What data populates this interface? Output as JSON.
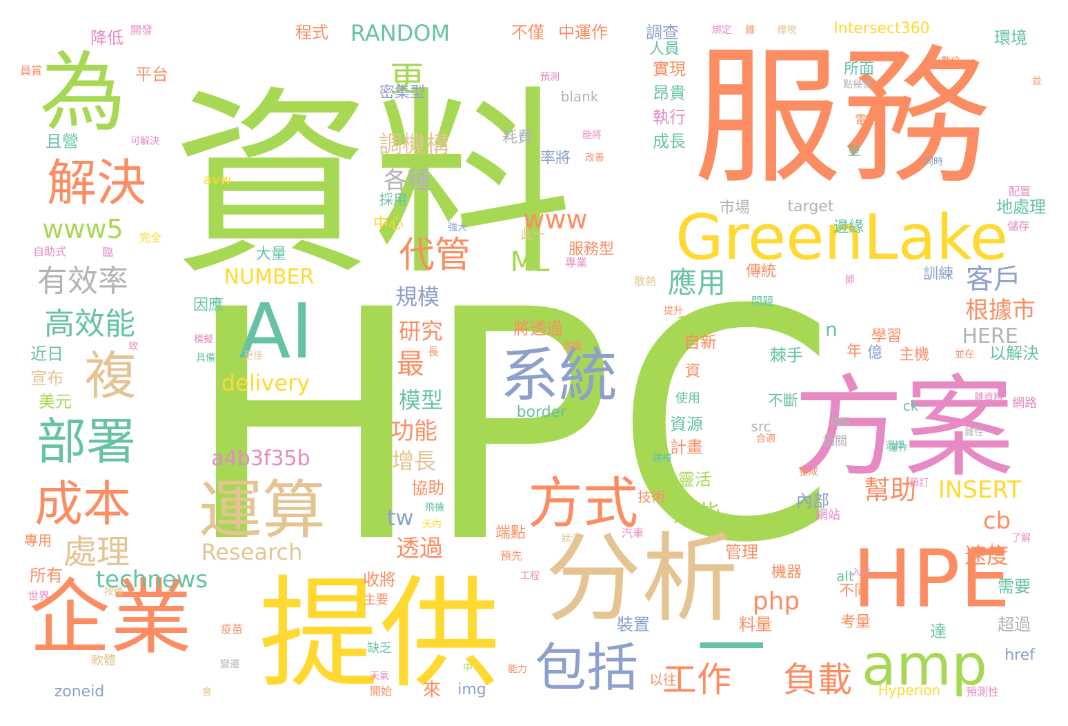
{
  "palette": {
    "green": "#a6d854",
    "orange": "#fc8d62",
    "yellow": "#ffd92f",
    "tan": "#e5c494",
    "teal": "#66c2a5",
    "blue": "#8da0cb",
    "pink": "#e78ac3",
    "gray": "#b3b3b3"
  },
  "words": [
    {
      "text": "HPC",
      "c": "green"
    },
    {
      "text": "資料",
      "c": "green"
    },
    {
      "text": "服務",
      "c": "orange"
    },
    {
      "text": "提供",
      "c": "yellow"
    },
    {
      "text": "方案",
      "c": "pink"
    },
    {
      "text": "分析",
      "c": "tan"
    },
    {
      "text": "企業",
      "c": "orange"
    },
    {
      "text": "HPE",
      "c": "orange"
    },
    {
      "text": "GreenLake",
      "c": "yellow"
    },
    {
      "text": "為",
      "c": "green"
    },
    {
      "text": "AI",
      "c": "teal"
    },
    {
      "text": "一",
      "c": "teal"
    },
    {
      "text": "系統",
      "c": "blue"
    },
    {
      "text": "運算",
      "c": "tan"
    },
    {
      "text": "解決",
      "c": "orange"
    },
    {
      "text": "包括",
      "c": "blue"
    },
    {
      "text": "方式",
      "c": "orange"
    },
    {
      "text": "amp",
      "c": "green"
    },
    {
      "text": "部署",
      "c": "teal"
    },
    {
      "text": "複",
      "c": "tan"
    },
    {
      "text": "成本",
      "c": "orange"
    },
    {
      "text": "工作",
      "c": "orange"
    },
    {
      "text": "負載",
      "c": "orange"
    },
    {
      "text": "高效能",
      "c": "teal"
    },
    {
      "text": "有效率",
      "c": "gray"
    },
    {
      "text": "www5",
      "c": "green"
    },
    {
      "text": "代管",
      "c": "orange"
    },
    {
      "text": "更",
      "c": "green"
    },
    {
      "text": "處理",
      "c": "tan"
    },
    {
      "text": "technews",
      "c": "teal"
    },
    {
      "text": "RANDOM",
      "c": "teal"
    },
    {
      "text": "調機構",
      "c": "tan"
    },
    {
      "text": "各種",
      "c": "gray"
    },
    {
      "text": "www",
      "c": "orange"
    },
    {
      "text": "ML",
      "c": "green"
    },
    {
      "text": "應用",
      "c": "teal"
    },
    {
      "text": "客戶",
      "c": "blue"
    },
    {
      "text": "根據市",
      "c": "orange"
    },
    {
      "text": "NUMBER",
      "c": "yellow"
    },
    {
      "text": "規模",
      "c": "blue"
    },
    {
      "text": "研究",
      "c": "orange"
    },
    {
      "text": "最",
      "c": "orange"
    },
    {
      "text": "delivery",
      "c": "yellow"
    },
    {
      "text": "a4b3f35b",
      "c": "pink"
    },
    {
      "text": "模型",
      "c": "teal"
    },
    {
      "text": "功能",
      "c": "orange"
    },
    {
      "text": "增長",
      "c": "tan"
    },
    {
      "text": "幫助",
      "c": "orange"
    },
    {
      "text": "INSERT",
      "c": "yellow"
    },
    {
      "text": "HERE",
      "c": "gray"
    },
    {
      "text": "tw",
      "c": "blue"
    },
    {
      "text": "cb",
      "c": "orange"
    },
    {
      "text": "Research",
      "c": "tan"
    },
    {
      "text": "透過",
      "c": "orange"
    },
    {
      "text": "php",
      "c": "orange"
    },
    {
      "text": "速度",
      "c": "orange"
    },
    {
      "text": "這些",
      "c": "green"
    },
    {
      "text": "a",
      "c": "green"
    },
    {
      "text": "n",
      "c": "teal"
    },
    {
      "text": "Intersect360",
      "c": "yellow"
    },
    {
      "text": "程式",
      "c": "orange"
    },
    {
      "text": "不僅",
      "c": "orange"
    },
    {
      "text": "中運作",
      "c": "orange"
    },
    {
      "text": "調查",
      "c": "blue"
    },
    {
      "text": "環境",
      "c": "teal"
    },
    {
      "text": "降低",
      "c": "pink"
    },
    {
      "text": "平台",
      "c": "orange"
    },
    {
      "text": "密集型",
      "c": "blue"
    },
    {
      "text": "blank",
      "c": "gray"
    },
    {
      "text": "耗費",
      "c": "gray"
    },
    {
      "text": "率將",
      "c": "blue"
    },
    {
      "text": "執行",
      "c": "pink"
    },
    {
      "text": "成長",
      "c": "teal"
    },
    {
      "text": "實現",
      "c": "orange"
    },
    {
      "text": "昂貴",
      "c": "teal"
    },
    {
      "text": "人員",
      "c": "teal"
    },
    {
      "text": "所面",
      "c": "teal"
    },
    {
      "text": "電力",
      "c": "orange"
    },
    {
      "text": "市場",
      "c": "gray"
    },
    {
      "text": "target",
      "c": "gray"
    },
    {
      "text": "邊緣",
      "c": "teal"
    },
    {
      "text": "地處理",
      "c": "teal"
    },
    {
      "text": "服務型",
      "c": "orange"
    },
    {
      "text": "大量",
      "c": "teal"
    },
    {
      "text": "傳統",
      "c": "orange"
    },
    {
      "text": "訓練",
      "c": "blue"
    },
    {
      "text": "因應",
      "c": "teal"
    },
    {
      "text": "學習",
      "c": "orange"
    },
    {
      "text": "將透過",
      "c": "orange"
    },
    {
      "text": "自新",
      "c": "orange"
    },
    {
      "text": "主機",
      "c": "orange"
    },
    {
      "text": "棘手",
      "c": "teal"
    },
    {
      "text": "以解決",
      "c": "teal"
    },
    {
      "text": "近日",
      "c": "teal"
    },
    {
      "text": "宣布",
      "c": "tan"
    },
    {
      "text": "美元",
      "c": "green"
    },
    {
      "text": "所有",
      "c": "orange"
    },
    {
      "text": "border",
      "c": "teal"
    },
    {
      "text": "資源",
      "c": "teal"
    },
    {
      "text": "計畫",
      "c": "orange"
    },
    {
      "text": "一靈活",
      "c": "green"
    },
    {
      "text": "協助",
      "c": "orange"
    },
    {
      "text": "內部",
      "c": "blue"
    },
    {
      "text": "不斷",
      "c": "teal"
    },
    {
      "text": "src",
      "c": "gray"
    },
    {
      "text": "ck",
      "c": "teal"
    },
    {
      "text": "收將",
      "c": "orange"
    },
    {
      "text": "機器",
      "c": "orange"
    },
    {
      "text": "alt",
      "c": "teal"
    },
    {
      "text": "不同",
      "c": "orange"
    },
    {
      "text": "需要",
      "c": "teal"
    },
    {
      "text": "超過",
      "c": "gray"
    },
    {
      "text": "管理",
      "c": "orange"
    },
    {
      "text": "裝置",
      "c": "blue"
    },
    {
      "text": "料量",
      "c": "orange"
    },
    {
      "text": "考量",
      "c": "orange"
    },
    {
      "text": "達",
      "c": "teal"
    },
    {
      "text": "以往",
      "c": "orange"
    },
    {
      "text": "href",
      "c": "blue"
    },
    {
      "text": "zoneid",
      "c": "blue"
    },
    {
      "text": "img",
      "c": "blue"
    },
    {
      "text": "Hyperion",
      "c": "yellow"
    },
    {
      "text": "來",
      "c": "orange"
    },
    {
      "text": "年",
      "c": "orange"
    },
    {
      "text": "億",
      "c": "blue"
    },
    {
      "text": "端點",
      "c": "orange"
    },
    {
      "text": "技術",
      "c": "orange"
    },
    {
      "text": "採用",
      "c": "teal"
    },
    {
      "text": "中心",
      "c": "yellow"
    },
    {
      "text": "此一",
      "c": "tan"
    },
    {
      "text": "且營",
      "c": "teal"
    },
    {
      "text": "自助式",
      "c": "pink"
    },
    {
      "text": "專用",
      "c": "orange"
    },
    {
      "text": "世界",
      "c": "pink"
    },
    {
      "text": "軟體",
      "c": "tan"
    },
    {
      "text": "主要",
      "c": "orange"
    },
    {
      "text": "缺乏",
      "c": "teal"
    },
    {
      "text": "資",
      "c": "orange"
    },
    {
      "text": "使用",
      "c": "teal"
    },
    {
      "text": "網路",
      "c": "pink"
    },
    {
      "text": "相關",
      "c": "gray"
    },
    {
      "text": "網站",
      "c": "pink"
    },
    {
      "text": "型",
      "c": "teal"
    },
    {
      "text": "同時",
      "c": "blue"
    },
    {
      "text": "配置",
      "c": "pink"
    },
    {
      "text": "儲存",
      "c": "pink"
    },
    {
      "text": "開發",
      "c": "pink"
    },
    {
      "text": "員賞",
      "c": "orange"
    },
    {
      "text": "可解決",
      "c": "pink"
    },
    {
      "text": "avw",
      "c": "yellow"
    },
    {
      "text": "完全",
      "c": "yellow"
    },
    {
      "text": "臨",
      "c": "pink"
    },
    {
      "text": "強大",
      "c": "blue"
    },
    {
      "text": "專業",
      "c": "pink"
    },
    {
      "text": "問題",
      "c": "teal"
    },
    {
      "text": "散熱",
      "c": "tan"
    },
    {
      "text": "提升",
      "c": "orange"
    },
    {
      "text": "更佳",
      "c": "tan"
    },
    {
      "text": "具備",
      "c": "teal"
    },
    {
      "text": "長",
      "c": "orange"
    },
    {
      "text": "效能",
      "c": "orange"
    },
    {
      "text": "並在",
      "c": "orange"
    },
    {
      "text": "雜資料",
      "c": "pink"
    },
    {
      "text": "雜性",
      "c": "gray"
    },
    {
      "text": "難題",
      "c": "gray"
    },
    {
      "text": "選擇",
      "c": "teal"
    },
    {
      "text": "預訂",
      "c": "pink"
    },
    {
      "text": "人",
      "c": "orange"
    },
    {
      "text": "入口",
      "c": "pink"
    },
    {
      "text": "工程",
      "c": "pink"
    },
    {
      "text": "狀況",
      "c": "tan"
    },
    {
      "text": "預先",
      "c": "orange"
    },
    {
      "text": "汽車",
      "c": "pink"
    },
    {
      "text": "建模",
      "c": "teal"
    },
    {
      "text": "飛機",
      "c": "teal"
    },
    {
      "text": "天內",
      "c": "yellow"
    },
    {
      "text": "疫苗",
      "c": "orange"
    },
    {
      "text": "天氣",
      "c": "pink"
    },
    {
      "text": "開始",
      "c": "orange"
    },
    {
      "text": "會",
      "c": "tan"
    },
    {
      "text": "中",
      "c": "green"
    },
    {
      "text": "能力",
      "c": "orange"
    },
    {
      "text": "預測性",
      "c": "pink"
    },
    {
      "text": "按優",
      "c": "tan"
    },
    {
      "text": "變遷",
      "c": "gray"
    },
    {
      "text": "模擬",
      "c": "pink"
    },
    {
      "text": "預測",
      "c": "pink"
    },
    {
      "text": "數位",
      "c": "orange"
    },
    {
      "text": "能將",
      "c": "pink"
    },
    {
      "text": "改善",
      "c": "orange"
    },
    {
      "text": "點幾個",
      "c": "gray"
    },
    {
      "text": "標視",
      "c": "tan"
    },
    {
      "text": "綁定",
      "c": "pink"
    },
    {
      "text": "並",
      "c": "orange"
    },
    {
      "text": "雜",
      "c": "orange"
    },
    {
      "text": "師",
      "c": "pink"
    },
    {
      "text": "致",
      "c": "pink"
    },
    {
      "text": "了解",
      "c": "pink"
    },
    {
      "text": "合適",
      "c": "orange"
    },
    {
      "text": "整成",
      "c": "orange"
    },
    {
      "text": "運作",
      "c": "teal"
    }
  ]
}
